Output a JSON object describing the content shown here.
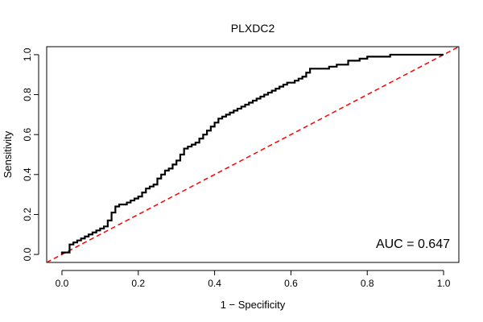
{
  "chart_data": {
    "type": "line",
    "title": "PLXDC2",
    "xlabel": "1 − Specificity",
    "ylabel": "Sensitivity",
    "xlim": [
      -0.04,
      1.04
    ],
    "ylim": [
      -0.04,
      1.04
    ],
    "xticks": [
      0.0,
      0.2,
      0.4,
      0.6,
      0.8,
      1.0
    ],
    "yticks": [
      0.0,
      0.2,
      0.4,
      0.6,
      0.8,
      1.0
    ],
    "xtick_labels": [
      "0.0",
      "0.2",
      "0.4",
      "0.6",
      "0.8",
      "1.0"
    ],
    "ytick_labels": [
      "0.0",
      "0.2",
      "0.4",
      "0.6",
      "0.8",
      "1.0"
    ],
    "grid": false,
    "annotation": "AUC = 0.647",
    "series": [
      {
        "color": "#000000",
        "style": "solid",
        "x": [
          0.0,
          0.02,
          0.03,
          0.04,
          0.05,
          0.06,
          0.07,
          0.08,
          0.09,
          0.1,
          0.11,
          0.12,
          0.13,
          0.14,
          0.15,
          0.16,
          0.17,
          0.18,
          0.19,
          0.2,
          0.21,
          0.22,
          0.23,
          0.24,
          0.25,
          0.26,
          0.27,
          0.28,
          0.29,
          0.3,
          0.31,
          0.32,
          0.33,
          0.34,
          0.35,
          0.36,
          0.37,
          0.38,
          0.39,
          0.4,
          0.41,
          0.42,
          0.43,
          0.44,
          0.45,
          0.46,
          0.47,
          0.48,
          0.49,
          0.5,
          0.51,
          0.52,
          0.53,
          0.54,
          0.55,
          0.56,
          0.57,
          0.58,
          0.59,
          0.6,
          0.61,
          0.62,
          0.63,
          0.64,
          0.65,
          0.66,
          0.7,
          0.72,
          0.74,
          0.75,
          0.78,
          0.8,
          0.82,
          0.84,
          0.86,
          0.87,
          0.9,
          1.0
        ],
        "y": [
          0.0,
          0.01,
          0.05,
          0.06,
          0.07,
          0.08,
          0.09,
          0.1,
          0.11,
          0.12,
          0.13,
          0.14,
          0.17,
          0.21,
          0.24,
          0.25,
          0.25,
          0.26,
          0.27,
          0.28,
          0.29,
          0.31,
          0.33,
          0.34,
          0.35,
          0.38,
          0.4,
          0.42,
          0.43,
          0.45,
          0.47,
          0.5,
          0.53,
          0.54,
          0.55,
          0.56,
          0.58,
          0.6,
          0.62,
          0.64,
          0.66,
          0.68,
          0.69,
          0.7,
          0.71,
          0.72,
          0.73,
          0.74,
          0.75,
          0.76,
          0.77,
          0.78,
          0.79,
          0.8,
          0.81,
          0.82,
          0.83,
          0.84,
          0.85,
          0.86,
          0.86,
          0.87,
          0.88,
          0.89,
          0.91,
          0.93,
          0.93,
          0.94,
          0.95,
          0.95,
          0.97,
          0.98,
          0.99,
          0.99,
          0.99,
          1.0,
          1.0,
          1.0
        ]
      },
      {
        "color": "#ff0000",
        "style": "dashed",
        "x": [
          -0.04,
          1.04
        ],
        "y": [
          -0.04,
          1.04
        ]
      }
    ]
  }
}
